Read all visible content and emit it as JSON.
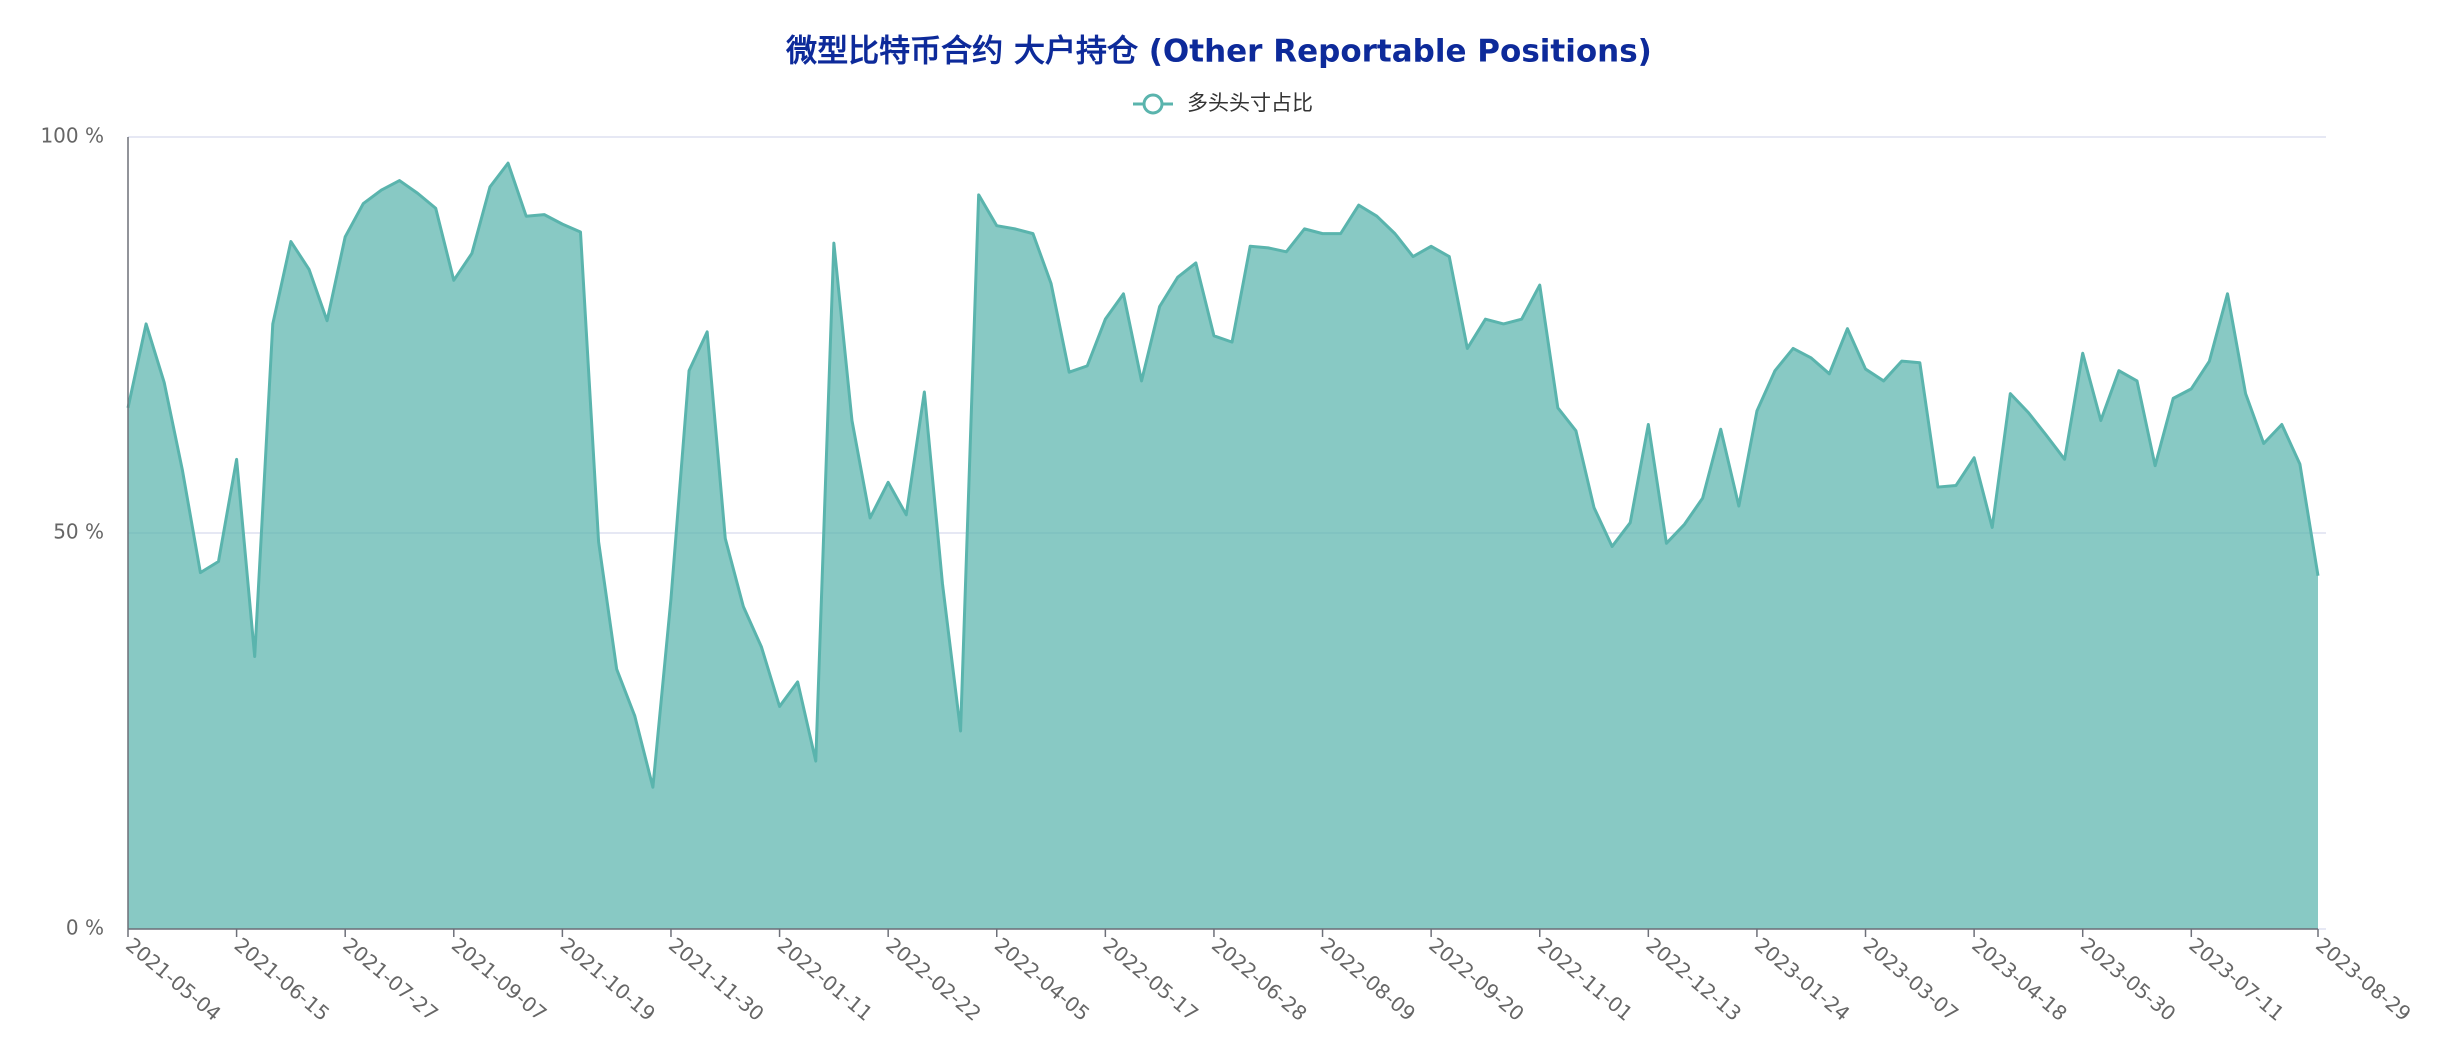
{
  "chart_data": {
    "type": "area",
    "title": "微型比特币合约 大户持仓 (Other Reportable Positions)",
    "categories": [
      "2021-05-04",
      null,
      null,
      null,
      null,
      null,
      "2021-06-15",
      null,
      null,
      null,
      null,
      null,
      "2021-07-27",
      null,
      null,
      null,
      null,
      null,
      "2021-09-07",
      null,
      null,
      null,
      null,
      null,
      "2021-10-19",
      null,
      null,
      null,
      null,
      null,
      "2021-11-30",
      null,
      null,
      null,
      null,
      null,
      "2022-01-11",
      null,
      null,
      null,
      null,
      null,
      "2022-02-22",
      null,
      null,
      null,
      null,
      null,
      "2022-04-05",
      null,
      null,
      null,
      null,
      null,
      "2022-05-17",
      null,
      null,
      null,
      null,
      null,
      "2022-06-28",
      null,
      null,
      null,
      null,
      null,
      "2022-08-09",
      null,
      null,
      null,
      null,
      null,
      "2022-09-20",
      null,
      null,
      null,
      null,
      null,
      "2022-11-01",
      null,
      null,
      null,
      null,
      null,
      "2022-12-13",
      null,
      null,
      null,
      null,
      null,
      "2023-01-24",
      null,
      null,
      null,
      null,
      null,
      "2023-03-07",
      null,
      null,
      null,
      null,
      null,
      "2023-04-18",
      null,
      null,
      null,
      null,
      null,
      "2023-05-30",
      null,
      null,
      null,
      null,
      null,
      "2023-07-11",
      null,
      null,
      null,
      null,
      null,
      null,
      "2023-08-29"
    ],
    "series": [
      {
        "name": "多头头寸占比",
        "color": "#5ab4ad",
        "values": [
          65.8,
          76.4,
          69,
          58,
          45,
          46.4,
          59.3,
          34.4,
          76.4,
          86.8,
          83.3,
          76.8,
          87.4,
          91.6,
          93.3,
          94.5,
          92.9,
          91,
          81.9,
          85.3,
          93.7,
          96.7,
          90,
          90.2,
          89,
          88,
          48.9,
          32.8,
          26.9,
          17.9,
          41.7,
          70.5,
          75.4,
          49.3,
          40.7,
          35.6,
          28.1,
          31.2,
          21.2,
          86.6,
          64.2,
          51.9,
          56.4,
          52.3,
          67.8,
          43.6,
          25,
          92.7,
          88.8,
          88.4,
          87.8,
          81.5,
          70.3,
          71.1,
          77,
          80.2,
          69.2,
          78.6,
          82.3,
          84.1,
          74.9,
          74.1,
          86.2,
          86,
          85.5,
          88.4,
          87.8,
          87.8,
          91.4,
          90,
          87.8,
          84.9,
          86.2,
          84.9,
          73.3,
          77,
          76.4,
          77,
          81.3,
          65.8,
          62.9,
          53.2,
          48.3,
          51.3,
          63.7,
          48.7,
          51.1,
          54.4,
          63.1,
          53.4,
          65.4,
          70.5,
          73.3,
          72.1,
          70.1,
          75.8,
          70.7,
          69.2,
          71.7,
          71.5,
          55.8,
          56,
          59.5,
          50.7,
          67.6,
          65.2,
          62.3,
          59.3,
          72.7,
          64.2,
          70.5,
          69.2,
          58.5,
          67,
          68.2,
          71.7,
          80.2,
          67.6,
          61.3,
          63.7,
          58.7,
          44.6
        ]
      }
    ],
    "ylim": [
      0,
      100
    ],
    "yticks": [
      {
        "value": 0,
        "label": "0 %"
      },
      {
        "value": 50,
        "label": "50 %"
      },
      {
        "value": 100,
        "label": "100 %"
      }
    ],
    "grid": true
  }
}
